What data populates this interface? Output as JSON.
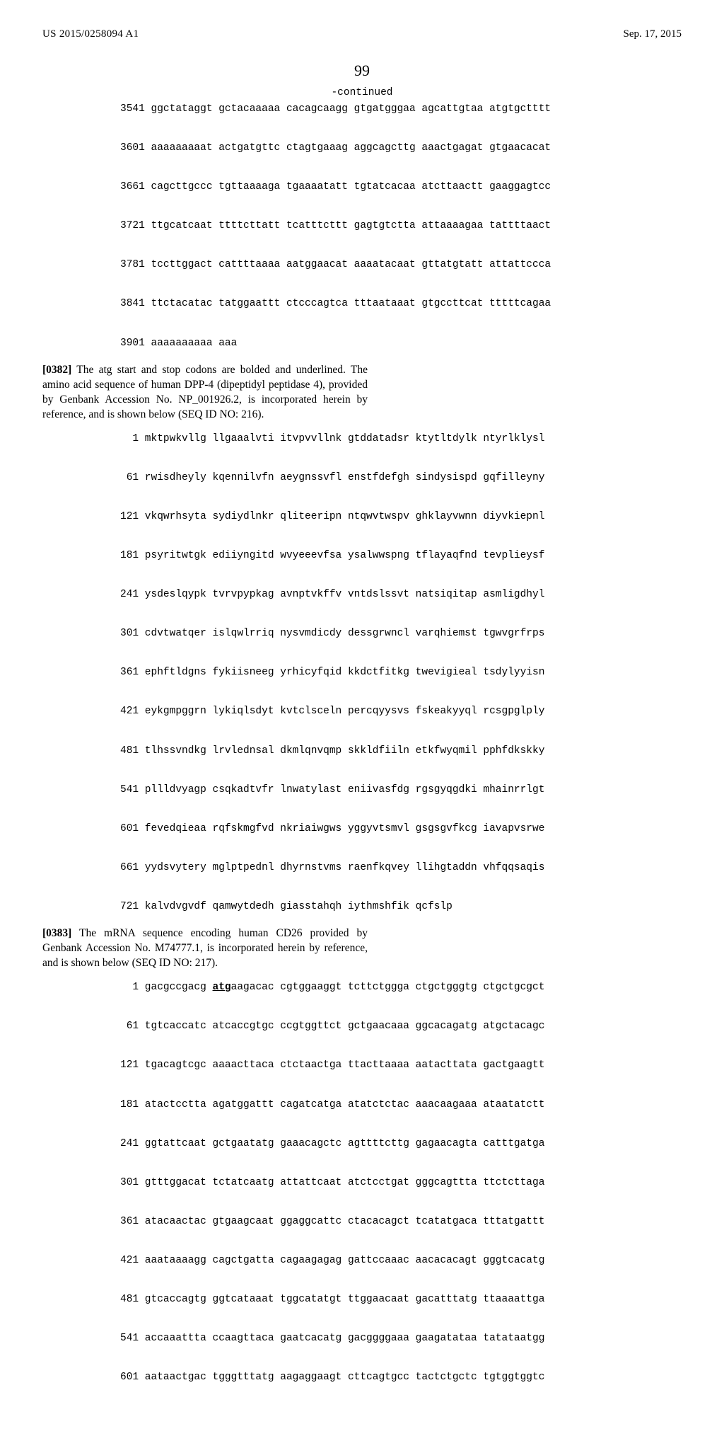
{
  "header": {
    "pubnum": "US 2015/0258094 A1",
    "date": "Sep. 17, 2015"
  },
  "page_number": "99",
  "continued_label": "-continued",
  "sequences": {
    "seq1": {
      "lines": [
        "3541 ggctataggt gctacaaaaa cacagcaagg gtgatgggaa agcattgtaa atgtgctttt",
        "3601 aaaaaaaaat actgatgttc ctagtgaaag aggcagcttg aaactgagat gtgaacacat",
        "3661 cagcttgccc tgttaaaaga tgaaaatatt tgtatcacaa atcttaactt gaaggagtcc",
        "3721 ttgcatcaat ttttcttatt tcatttcttt gagtgtctta attaaaagaa tattttaact",
        "3781 tccttggact cattttaaaa aatggaacat aaaatacaat gttatgtatt attattccca",
        "3841 ttctacatac tatggaattt ctcccagtca tttaataaat gtgccttcat tttttcagaa",
        "3901 aaaaaaaaaa aaa"
      ]
    },
    "seq2": {
      "lines": [
        "  1 mktpwkvllg llgaaalvti itvpvvllnk gtddatadsr ktytltdylk ntyrlklysl",
        " 61 rwisdheyly kqennilvfn aeygnssvfl enstfdefgh sindysispd gqfilleyny",
        "121 vkqwrhsyta sydiydlnkr qliteeripn ntqwvtwspv ghklayvwnn diyvkiepnl",
        "181 psyritwtgk ediiyngitd wvyeeevfsa ysalwwspng tflayaqfnd tevplieysf",
        "241 ysdeslqypk tvrvpypkag avnptvkffv vntdslssvt natsiqitap asmligdhyl",
        "301 cdvtwatqer islqwlrriq nysvmdicdy dessgrwncl varqhiemst tgwvgrfrps",
        "361 ephftldgns fykiisneeg yrhicyfqid kkdctfitkg twevigieal tsdylyyisn",
        "421 eykgmpggrn lykiqlsdyt kvtclsceln percqyysvs fskeakyyql rcsgpglply",
        "481 tlhssvndkg lrvlednsal dkmlqnvqmp skkldfiiln etkfwyqmil pphfdkskky",
        "541 pllldvyagp csqkadtvfr lnwatylast eniivasfdg rgsgyqgdki mhainrrlgt",
        "601 fevedqieaa rqfskmgfvd nkriaiwgws yggyvtsmvl gsgsgvfkcg iavapvsrwe",
        "661 yydsvytery mglptpednl dhyrnstvms raenfkqvey llihgtaddn vhfqqsaqis",
        "721 kalvdvgvdf qamwytdedh giasstahqh iythmshfik qcfslp"
      ]
    },
    "seq3": {
      "lines": [
        "  1 gacgccgacg __ATG__aagacac cgtggaaggt tcttctggga ctgctgggtg ctgctgcgct",
        " 61 tgtcaccatc atcaccgtgc ccgtggttct gctgaacaaa ggcacagatg atgctacagc",
        "121 tgacagtcgc aaaacttaca ctctaactga ttacttaaaa aatacttata gactgaagtt",
        "181 atactcctta agatggattt cagatcatga atatctctac aaacaagaaa ataatatctt",
        "241 ggtattcaat gctgaatatg gaaacagctc agttttcttg gagaacagta catttgatga",
        "301 gtttggacat tctatcaatg attattcaat atctcctgat gggcagttta ttctcttaga",
        "361 atacaactac gtgaagcaat ggaggcattc ctacacagct tcatatgaca tttatgattt",
        "421 aaataaaagg cagctgatta cagaagagag gattccaaac aacacacagt gggtcacatg",
        "481 gtcaccagtg ggtcataaat tggcatatgt ttggaacaat gacatttatg ttaaaattga",
        "541 accaaattta ccaagttaca gaatcacatg gacggggaaa gaagatataa tatataatgg",
        "601 aataactgac tgggtttatg aagaggaagt cttcagtgcc tactctgctc tgtggtggtc"
      ]
    }
  },
  "paragraphs": {
    "p0382": {
      "num": "[0382]",
      "text": "   The atg start and stop codons are bolded and underlined. The amino acid sequence of human DPP-4 (dipeptidyl peptidase 4), provided by Genbank Accession No. NP_001926.2, is incorporated herein by reference, and is shown below (SEQ ID NO: 216)."
    },
    "p0383": {
      "num": "[0383]",
      "text": "   The mRNA sequence encoding human CD26 provided by Genbank Accession No. M74777.1, is incorporated herein by reference, and is shown below (SEQ ID NO: 217)."
    }
  }
}
